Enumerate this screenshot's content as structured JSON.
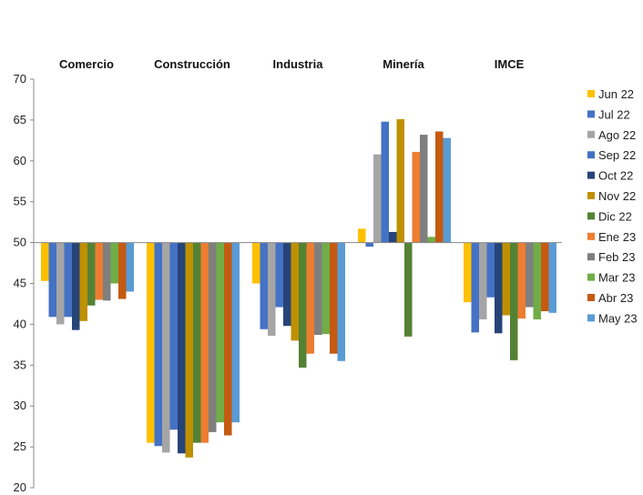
{
  "chart_data": {
    "type": "bar",
    "categories": [
      "Comercio",
      "Construcción",
      "Industria",
      "Minería",
      "IMCE"
    ],
    "ylim": [
      20,
      70
    ],
    "yticks": [
      20,
      25,
      30,
      35,
      40,
      45,
      50,
      55,
      60,
      65,
      70
    ],
    "baseline": 50,
    "grid": false,
    "legend_position": "right",
    "series": [
      {
        "name": "Jun 22",
        "color": "#FFC000",
        "values": [
          45.3,
          25.5,
          45.0,
          51.7,
          42.7
        ]
      },
      {
        "name": "Jul 22",
        "color": "#4472C4",
        "values": [
          40.9,
          25.1,
          39.4,
          49.5,
          39.0
        ]
      },
      {
        "name": "Ago 22",
        "color": "#A5A5A5",
        "values": [
          40.0,
          24.3,
          38.6,
          60.8,
          40.6
        ]
      },
      {
        "name": "Sep 22",
        "color": "#4472C4",
        "values": [
          40.9,
          27.1,
          42.1,
          64.8,
          43.3
        ]
      },
      {
        "name": "Oct 22",
        "color": "#264478",
        "values": [
          39.3,
          24.2,
          39.8,
          51.3,
          38.9
        ]
      },
      {
        "name": "Nov 22",
        "color": "#BF9000",
        "values": [
          40.4,
          23.7,
          38.0,
          65.1,
          41.1
        ]
      },
      {
        "name": "Dic 22",
        "color": "#548235",
        "values": [
          42.3,
          25.5,
          34.7,
          38.5,
          35.6
        ]
      },
      {
        "name": "Ene 23",
        "color": "#ED7D31",
        "values": [
          43.0,
          25.5,
          36.4,
          61.1,
          40.7
        ]
      },
      {
        "name": "Feb 23",
        "color": "#7F7F7F",
        "values": [
          42.9,
          26.8,
          38.7,
          63.2,
          42.1
        ]
      },
      {
        "name": "Mar 23",
        "color": "#70AD47",
        "values": [
          45.0,
          28.0,
          38.8,
          50.7,
          40.6
        ]
      },
      {
        "name": "Abr 23",
        "color": "#C55A11",
        "values": [
          43.1,
          26.4,
          36.4,
          63.6,
          41.6
        ]
      },
      {
        "name": "May 23",
        "color": "#5B9BD5",
        "values": [
          44.0,
          28.0,
          35.5,
          62.8,
          41.4
        ]
      }
    ]
  }
}
